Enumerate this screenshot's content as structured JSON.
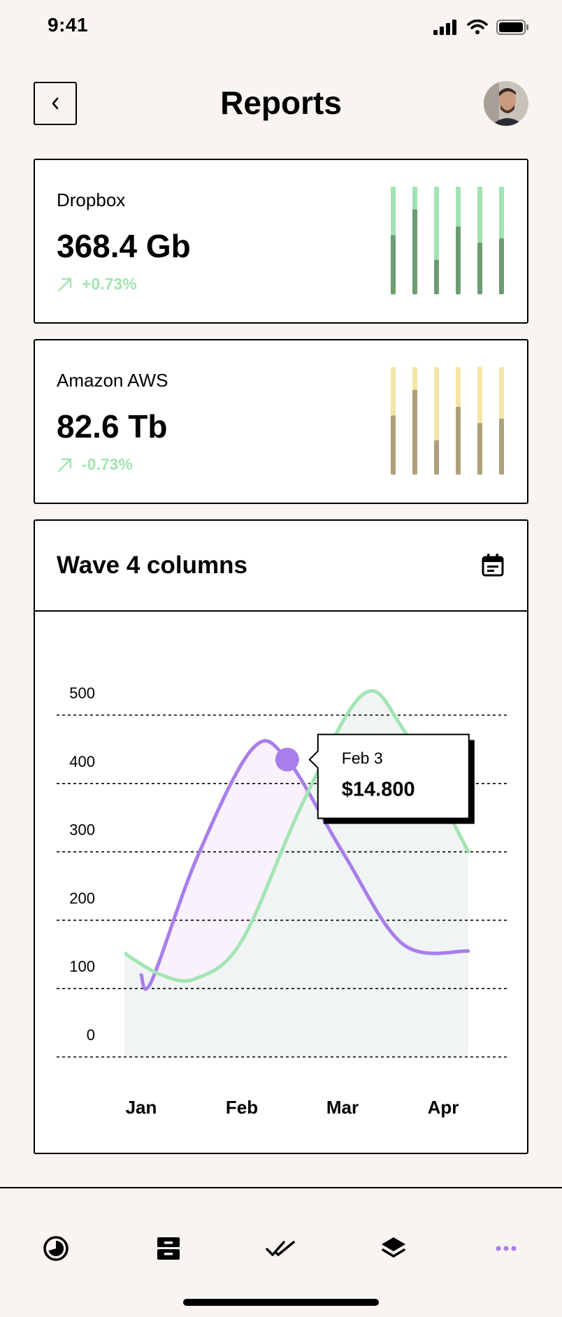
{
  "status_bar": {
    "time": "9:41"
  },
  "header": {
    "title": "Reports"
  },
  "stats": [
    {
      "name": "Dropbox",
      "value": "368.4 Gb",
      "change": "+0.73%",
      "bar_fraction": [
        0.45,
        0.21,
        0.68,
        0.37,
        0.52,
        0.48
      ],
      "colors": {
        "track": "#a1e3b2",
        "fill": "#6c9c72"
      }
    },
    {
      "name": "Amazon AWS",
      "value": "82.6 Tb",
      "change": "-0.73%",
      "bar_fraction": [
        0.45,
        0.21,
        0.68,
        0.37,
        0.52,
        0.48
      ],
      "colors": {
        "track": "#f5e6a7",
        "fill": "#aea07a"
      }
    }
  ],
  "chart": {
    "title": "Wave 4 columns",
    "tooltip": {
      "label": "Feb 3",
      "value": "$14.800"
    }
  },
  "chart_data": {
    "type": "line",
    "categories": [
      "Jan",
      "Feb",
      "Mar",
      "Apr"
    ],
    "ylim": [
      0,
      500
    ],
    "y_ticks": [
      0,
      100,
      200,
      300,
      400,
      500
    ],
    "grid": true,
    "series": [
      {
        "color": "#a87eea",
        "points": [
          [
            0,
            120
          ],
          [
            0.1,
            110
          ],
          [
            0.55,
            290
          ],
          [
            1.1,
            450
          ],
          [
            1.45,
            435
          ],
          [
            2,
            300
          ],
          [
            2.6,
            165
          ],
          [
            3.25,
            155
          ]
        ]
      },
      {
        "color": "#a3e4b3",
        "points": [
          [
            -0.2,
            155
          ],
          [
            0.2,
            120
          ],
          [
            0.55,
            115
          ],
          [
            1.0,
            170
          ],
          [
            1.6,
            370
          ],
          [
            2.2,
            530
          ],
          [
            2.6,
            480
          ],
          [
            3.25,
            300
          ]
        ]
      }
    ],
    "highlight": {
      "x": 1.45,
      "y": 435
    }
  },
  "bottom_nav": {
    "items": [
      "chart-pie-icon",
      "inbox-icon",
      "check-double-icon",
      "layers-icon",
      "more-icon"
    ],
    "active_color": "#a87eea"
  }
}
